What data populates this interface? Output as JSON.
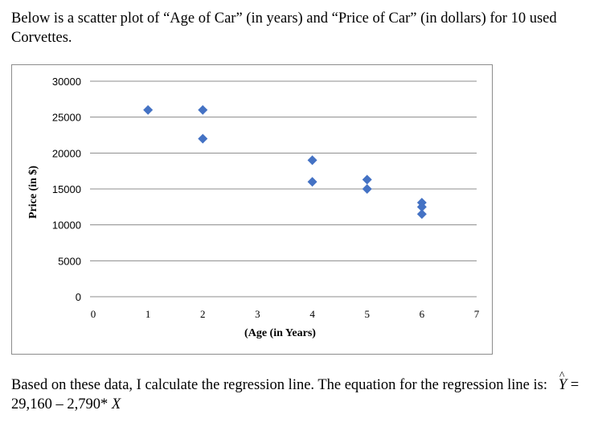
{
  "intro_text": "Below is a scatter plot of “Age of Car” (in years) and “Price of Car” (in dollars) for 10 used Corvettes.",
  "conclusion": {
    "text": "Based on these data, I calculate the regression line. The equation for the regression line is:",
    "yhat_symbol": "Y",
    "hat_symbol": "^",
    "equation_rhs": "= 29,160 – 2,790*",
    "x_symbol": "X"
  },
  "chart_data": {
    "type": "scatter",
    "title": "",
    "xlabel": "(Age (in Years)",
    "ylabel": "Price (in $)",
    "xlim": [
      0,
      7
    ],
    "ylim": [
      0,
      30000
    ],
    "x_ticks": [
      0,
      1,
      2,
      3,
      4,
      5,
      6,
      7
    ],
    "y_ticks": [
      0,
      5000,
      10000,
      15000,
      20000,
      25000,
      30000
    ],
    "grid": "horizontal",
    "marker": "diamond",
    "marker_color": "#4472C4",
    "points": [
      {
        "x": 1,
        "y": 26000
      },
      {
        "x": 2,
        "y": 26000
      },
      {
        "x": 2,
        "y": 22000
      },
      {
        "x": 4,
        "y": 19000
      },
      {
        "x": 4,
        "y": 16000
      },
      {
        "x": 5,
        "y": 16300
      },
      {
        "x": 5,
        "y": 15000
      },
      {
        "x": 6,
        "y": 13100
      },
      {
        "x": 6,
        "y": 12500
      },
      {
        "x": 6,
        "y": 11500
      }
    ]
  }
}
